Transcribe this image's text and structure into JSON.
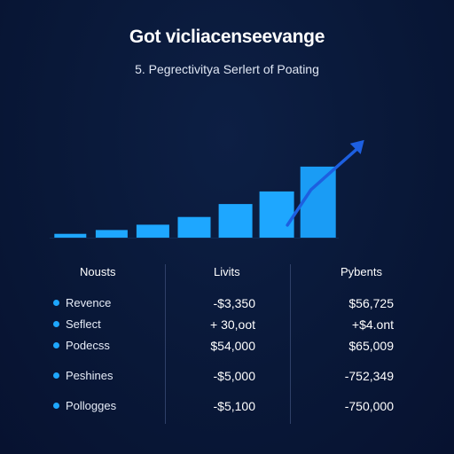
{
  "header": {
    "title": "Got vicliacenseevange",
    "subtitle": "5. Pegrectivitya Serlert of Poating"
  },
  "chart_data": {
    "type": "bar",
    "categories": [
      "",
      "",
      "",
      "",
      "",
      "",
      ""
    ],
    "values": [
      1,
      2,
      3.4,
      5.4,
      8.8,
      12.1,
      18.6
    ],
    "ylim": [
      0,
      26
    ],
    "trend_arrow": true,
    "colors": {
      "bar": "#1ea7ff",
      "bar_last": "#1a9cf5",
      "arrow": "#1d5fe0"
    }
  },
  "table": {
    "columns": [
      "Nousts",
      "Livits",
      "Pybents"
    ],
    "rows": [
      {
        "label": "Revence",
        "col2": "-$3,350",
        "col3": "$56,725"
      },
      {
        "label": "Seflect",
        "col2": "+ 30,oot",
        "col3": "+$4.ont"
      },
      {
        "label": "Podecss",
        "col2": "$54,000",
        "col3": "$65,009"
      },
      {
        "label": "Peshines",
        "col2": "-$5,000",
        "col3": "-752,349"
      },
      {
        "label": "Pollogges",
        "col2": "-$5,100",
        "col3": "-750,000"
      }
    ]
  }
}
